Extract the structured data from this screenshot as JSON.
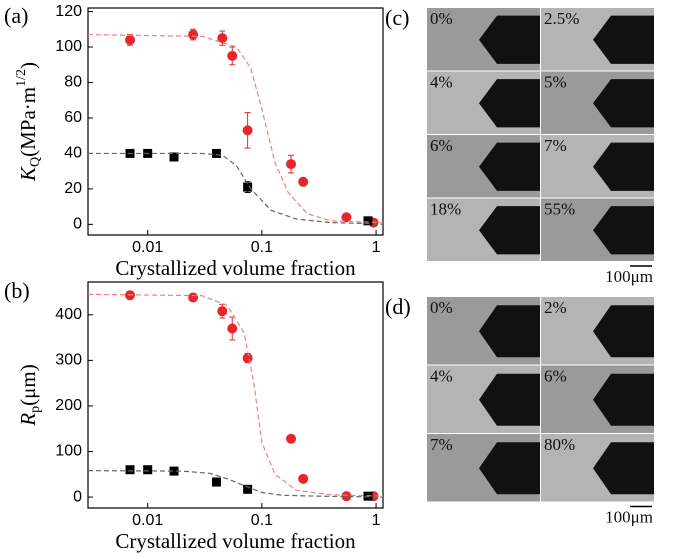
{
  "chart_data": [
    {
      "type": "scatter",
      "panel": "(a)",
      "xlabel": "Crystallized volume fraction",
      "ylabel": {
        "main": "K",
        "sub": "Q",
        "rest": "(MPa·m",
        "sup": "1/2",
        "end": ")"
      },
      "xscale": "log",
      "xlim": [
        0.003,
        1.15
      ],
      "xticks": [
        0.01,
        0.1,
        1
      ],
      "ylim": [
        -6,
        122
      ],
      "yticks": [
        0,
        20,
        40,
        60,
        80,
        100,
        120
      ],
      "series": [
        {
          "color": "#e8262a",
          "marker": "circle",
          "x": [
            0.007,
            0.025,
            0.045,
            0.055,
            0.075,
            0.18,
            0.23,
            0.55,
            0.95
          ],
          "values": [
            104,
            107,
            105,
            95,
            53,
            34,
            24,
            4,
            1
          ],
          "yerr": [
            3,
            3,
            4,
            5,
            10,
            5,
            2,
            1,
            1
          ]
        },
        {
          "color": "#000000",
          "marker": "square",
          "x": [
            0.007,
            0.01,
            0.017,
            0.04,
            0.075,
            0.85
          ],
          "values": [
            40,
            40,
            38,
            40,
            21,
            2
          ],
          "yerr": [
            2,
            2,
            2,
            1,
            3,
            2
          ]
        },
        {
          "color": "#f08080",
          "line_style": "dashed",
          "x": [
            0.003,
            0.03,
            0.06,
            0.08,
            0.1,
            0.13,
            0.17,
            0.25,
            0.4,
            1.15
          ],
          "values": [
            107,
            106,
            100,
            88,
            65,
            35,
            18,
            6,
            2,
            1
          ]
        },
        {
          "color": "#666666",
          "line_style": "dashed",
          "x": [
            0.003,
            0.03,
            0.045,
            0.06,
            0.08,
            0.12,
            0.2,
            0.4,
            0.8,
            1.15
          ],
          "values": [
            40,
            40,
            39,
            33,
            20,
            8,
            3,
            1,
            0.5,
            0
          ]
        }
      ]
    },
    {
      "type": "scatter",
      "panel": "(b)",
      "xlabel": "Crystallized volume fraction",
      "ylabel": {
        "main": "R",
        "sub": "p",
        "rest": "(μm)"
      },
      "xscale": "log",
      "xlim": [
        0.003,
        1.15
      ],
      "xticks": [
        0.01,
        0.1,
        1
      ],
      "ylim": [
        -24,
        472
      ],
      "yticks": [
        0,
        100,
        200,
        300,
        400
      ],
      "series": [
        {
          "color": "#e8262a",
          "marker": "circle",
          "x": [
            0.007,
            0.025,
            0.045,
            0.055,
            0.075,
            0.18,
            0.23,
            0.55,
            0.95
          ],
          "values": [
            443,
            438,
            408,
            370,
            305,
            128,
            40,
            2,
            2
          ],
          "yerr": [
            8,
            8,
            15,
            25,
            10,
            5,
            5,
            2,
            2
          ]
        },
        {
          "color": "#000000",
          "marker": "square",
          "x": [
            0.007,
            0.01,
            0.017,
            0.04,
            0.075,
            0.85
          ],
          "values": [
            60,
            60,
            57,
            33,
            17,
            2
          ],
          "yerr": [
            4,
            4,
            4,
            4,
            8,
            3
          ]
        },
        {
          "color": "#f08080",
          "line_style": "dashed",
          "x": [
            0.003,
            0.03,
            0.05,
            0.07,
            0.085,
            0.1,
            0.13,
            0.2,
            0.4,
            1.15
          ],
          "values": [
            445,
            442,
            420,
            360,
            250,
            120,
            50,
            15,
            5,
            2
          ]
        },
        {
          "color": "#666666",
          "line_style": "dashed",
          "x": [
            0.003,
            0.02,
            0.035,
            0.05,
            0.07,
            0.1,
            0.15,
            0.3,
            0.6,
            1.15
          ],
          "values": [
            58,
            57,
            52,
            40,
            25,
            10,
            4,
            2,
            1,
            0
          ]
        }
      ]
    }
  ],
  "panel_c": {
    "label": "(c)",
    "images": [
      "0%",
      "2.5%",
      "4%",
      "5%",
      "6%",
      "7%",
      "18%",
      "55%"
    ],
    "scale": "100μm"
  },
  "panel_d": {
    "label": "(d)",
    "images": [
      "0%",
      "2%",
      "4%",
      "6%",
      "7%",
      "80%"
    ],
    "scale": "100μm"
  }
}
